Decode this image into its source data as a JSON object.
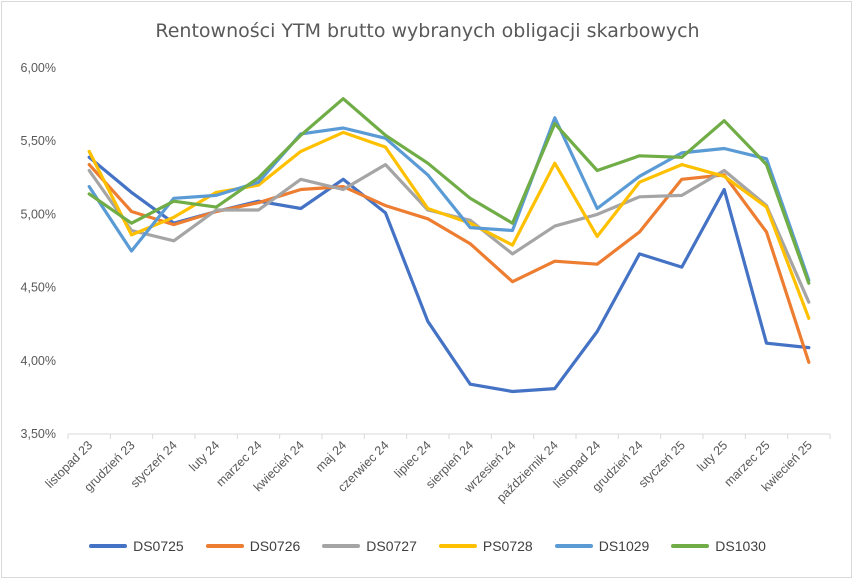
{
  "chart_data": {
    "type": "line",
    "title": "Rentowności YTM brutto wybranych obligacji skarbowych",
    "categories": [
      "listopad 23",
      "grudzień 23",
      "styczeń 24",
      "luty 24",
      "marzec 24",
      "kwiecień 24",
      "maj 24",
      "czerwiec 24",
      "lipiec 24",
      "sierpień 24",
      "wrzesień 24",
      "październik 24",
      "listopad 24",
      "grudzień 24",
      "styczeń 25",
      "luty 25",
      "marzec 25",
      "kwiecień 25"
    ],
    "ylim": [
      3.5,
      6.0
    ],
    "yticks": [
      "3,50%",
      "4,00%",
      "4,50%",
      "5,00%",
      "5,50%",
      "6,00%"
    ],
    "ytick_values": [
      3.5,
      4.0,
      4.5,
      5.0,
      5.5,
      6.0
    ],
    "legend_position": "bottom",
    "grid": false,
    "series": [
      {
        "name": "DS0725",
        "color": "#4472c4",
        "values": [
          5.39,
          5.15,
          4.94,
          5.02,
          5.09,
          5.04,
          5.24,
          5.01,
          4.27,
          3.84,
          3.79,
          3.81,
          4.2,
          4.73,
          4.64,
          5.17,
          4.12,
          4.09
        ]
      },
      {
        "name": "DS0726",
        "color": "#ed7d31",
        "values": [
          5.34,
          5.02,
          4.93,
          5.02,
          5.08,
          5.17,
          5.19,
          5.06,
          4.97,
          4.8,
          4.54,
          4.68,
          4.66,
          4.88,
          5.24,
          5.27,
          4.88,
          3.99
        ]
      },
      {
        "name": "DS0727",
        "color": "#a5a5a5",
        "values": [
          5.3,
          4.89,
          4.82,
          5.03,
          5.03,
          5.24,
          5.17,
          5.34,
          5.03,
          4.96,
          4.73,
          4.92,
          5.0,
          5.12,
          5.13,
          5.3,
          5.06,
          4.4
        ]
      },
      {
        "name": "PS0728",
        "color": "#ffc000",
        "values": [
          5.43,
          4.86,
          4.98,
          5.15,
          5.2,
          5.43,
          5.56,
          5.46,
          5.04,
          4.94,
          4.79,
          5.35,
          4.85,
          5.22,
          5.34,
          5.26,
          5.05,
          4.29
        ]
      },
      {
        "name": "DS1029",
        "color": "#5b9bd5",
        "values": [
          5.19,
          4.75,
          5.11,
          5.13,
          5.22,
          5.55,
          5.59,
          5.52,
          5.27,
          4.91,
          4.89,
          5.66,
          5.04,
          5.26,
          5.42,
          5.45,
          5.38,
          4.55
        ]
      },
      {
        "name": "DS1030",
        "color": "#70ad47",
        "values": [
          5.14,
          4.94,
          5.09,
          5.05,
          5.25,
          5.54,
          5.79,
          5.54,
          5.35,
          5.11,
          4.94,
          5.62,
          5.3,
          5.4,
          5.39,
          5.64,
          5.34,
          4.53
        ]
      }
    ]
  }
}
